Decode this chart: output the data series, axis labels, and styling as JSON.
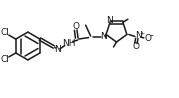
{
  "bg_color": "#ffffff",
  "line_color": "#1a1a1a",
  "lw": 1.1,
  "fs": 6.5,
  "figsize": [
    1.79,
    0.98
  ],
  "dpi": 100,
  "xlim": [
    0,
    179
  ],
  "ylim": [
    0,
    98
  ]
}
